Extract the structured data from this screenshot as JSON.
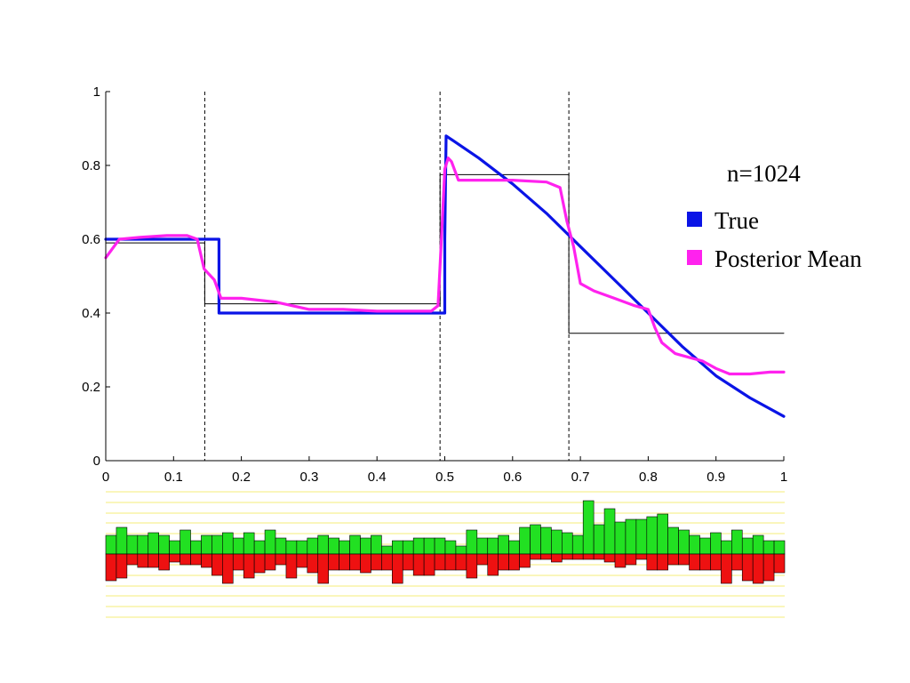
{
  "colors": {
    "true_line": "#0a14e6",
    "posterior_line": "#ff22ee",
    "step_line": "#000000",
    "change_points": "#000000",
    "positive_bars": "#22e022",
    "negative_bars": "#ee1111",
    "band_lines": "#f4ee7a"
  },
  "chart_data": [
    {
      "type": "line",
      "annotation": "n=1024",
      "xlim": [
        0,
        1
      ],
      "ylim": [
        0,
        1
      ],
      "x_ticks": [
        "0",
        "0.1",
        "0.2",
        "0.3",
        "0.4",
        "0.5",
        "0.6",
        "0.7",
        "0.8",
        "0.9",
        "1"
      ],
      "y_ticks": [
        "0",
        "0.2",
        "0.4",
        "0.6",
        "0.8",
        "1"
      ],
      "legend": {
        "placement": "right",
        "entries": [
          "True",
          "Posterior Mean"
        ]
      },
      "change_points": [
        0.146,
        0.493,
        0.683
      ],
      "series": [
        {
          "name": "True",
          "x": [
            0,
            0.167,
            0.167,
            0.5,
            0.5,
            0.502,
            0.55,
            0.6,
            0.65,
            0.7,
            0.75,
            0.8,
            0.85,
            0.9,
            0.95,
            1.0
          ],
          "y": [
            0.6,
            0.6,
            0.4,
            0.4,
            0.6,
            0.88,
            0.82,
            0.75,
            0.67,
            0.58,
            0.49,
            0.4,
            0.31,
            0.23,
            0.17,
            0.12
          ]
        },
        {
          "name": "Posterior Mean",
          "x": [
            0,
            0.008,
            0.02,
            0.05,
            0.09,
            0.12,
            0.135,
            0.145,
            0.15,
            0.16,
            0.17,
            0.2,
            0.25,
            0.3,
            0.35,
            0.4,
            0.45,
            0.48,
            0.49,
            0.495,
            0.5,
            0.505,
            0.51,
            0.52,
            0.54,
            0.6,
            0.65,
            0.67,
            0.68,
            0.69,
            0.7,
            0.72,
            0.75,
            0.78,
            0.8,
            0.81,
            0.82,
            0.84,
            0.86,
            0.88,
            0.9,
            0.92,
            0.95,
            0.98,
            1.0
          ],
          "y": [
            0.55,
            0.57,
            0.6,
            0.605,
            0.61,
            0.61,
            0.6,
            0.52,
            0.51,
            0.49,
            0.44,
            0.44,
            0.43,
            0.41,
            0.41,
            0.405,
            0.405,
            0.405,
            0.42,
            0.6,
            0.79,
            0.82,
            0.81,
            0.76,
            0.76,
            0.76,
            0.755,
            0.74,
            0.65,
            0.58,
            0.48,
            0.46,
            0.44,
            0.42,
            0.41,
            0.36,
            0.32,
            0.29,
            0.28,
            0.27,
            0.25,
            0.235,
            0.235,
            0.24,
            0.24
          ]
        },
        {
          "name": "",
          "x": [
            0,
            0.146,
            0.146,
            0.493,
            0.493,
            0.683,
            0.683,
            1.0
          ],
          "y": [
            0.59,
            0.59,
            0.425,
            0.425,
            0.775,
            0.775,
            0.345,
            0.345
          ]
        }
      ]
    },
    {
      "type": "bar",
      "bins": 64,
      "positive": [
        0.35,
        0.5,
        0.35,
        0.35,
        0.4,
        0.35,
        0.25,
        0.45,
        0.25,
        0.35,
        0.35,
        0.4,
        0.3,
        0.4,
        0.25,
        0.45,
        0.3,
        0.25,
        0.25,
        0.3,
        0.35,
        0.3,
        0.25,
        0.35,
        0.3,
        0.35,
        0.15,
        0.25,
        0.25,
        0.3,
        0.3,
        0.3,
        0.25,
        0.15,
        0.45,
        0.3,
        0.3,
        0.35,
        0.25,
        0.5,
        0.55,
        0.5,
        0.45,
        0.4,
        0.35,
        1.0,
        0.55,
        0.85,
        0.6,
        0.65,
        0.65,
        0.7,
        0.75,
        0.5,
        0.45,
        0.35,
        0.3,
        0.4,
        0.25,
        0.45,
        0.3,
        0.35,
        0.25,
        0.25
      ],
      "negative": [
        0.5,
        0.45,
        0.2,
        0.25,
        0.25,
        0.3,
        0.15,
        0.2,
        0.2,
        0.25,
        0.4,
        0.55,
        0.3,
        0.45,
        0.35,
        0.3,
        0.2,
        0.45,
        0.25,
        0.35,
        0.55,
        0.3,
        0.3,
        0.3,
        0.35,
        0.3,
        0.3,
        0.55,
        0.3,
        0.4,
        0.4,
        0.3,
        0.3,
        0.3,
        0.45,
        0.2,
        0.4,
        0.3,
        0.3,
        0.25,
        0.1,
        0.1,
        0.15,
        0.1,
        0.1,
        0.1,
        0.1,
        0.15,
        0.25,
        0.2,
        0.1,
        0.3,
        0.3,
        0.2,
        0.2,
        0.3,
        0.3,
        0.3,
        0.55,
        0.3,
        0.5,
        0.55,
        0.5,
        0.35
      ]
    }
  ]
}
